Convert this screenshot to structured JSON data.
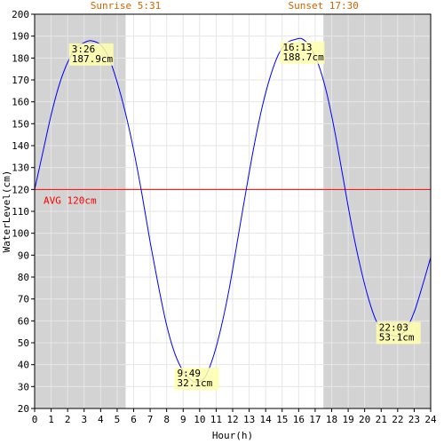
{
  "colors": {
    "night": "#d3d3d3",
    "day": "#ffffff",
    "grid": "#e6e6e6",
    "curve": "#0000ff",
    "avg": "#ff0000",
    "sun_text": "#cc6600",
    "annotation_bg": "#ffffaa",
    "axis": "#000000"
  },
  "sunrise_label": "Sunrise 5:31",
  "sunset_label": "Sunset 17:30",
  "chart_data": {
    "type": "line",
    "xlabel": "Hour(h)",
    "ylabel": "WaterLevel(cm)",
    "xlim": [
      0,
      24
    ],
    "ylim": [
      20,
      200
    ],
    "x_ticks": [
      0,
      1,
      2,
      3,
      4,
      5,
      6,
      7,
      8,
      9,
      10,
      11,
      12,
      13,
      14,
      15,
      16,
      17,
      18,
      19,
      20,
      21,
      22,
      23,
      24
    ],
    "y_ticks": [
      20,
      30,
      40,
      50,
      60,
      70,
      80,
      90,
      100,
      110,
      120,
      130,
      140,
      150,
      160,
      170,
      180,
      190,
      200
    ],
    "grid": true,
    "daylight": {
      "sunrise_hour": 5.517,
      "sunset_hour": 17.5
    },
    "average": {
      "value": 120,
      "label": "AVG 120cm"
    },
    "series": [
      {
        "points": [
          [
            0,
            120
          ],
          [
            0.5,
            137
          ],
          [
            1,
            154
          ],
          [
            1.5,
            168
          ],
          [
            2,
            178
          ],
          [
            2.5,
            184.5
          ],
          [
            3,
            187
          ],
          [
            3.43,
            187.9
          ],
          [
            4,
            186
          ],
          [
            4.5,
            180
          ],
          [
            5,
            169
          ],
          [
            5.5,
            155
          ],
          [
            6,
            138
          ],
          [
            6.5,
            118
          ],
          [
            7,
            96
          ],
          [
            7.5,
            76
          ],
          [
            8,
            58
          ],
          [
            8.5,
            45
          ],
          [
            9,
            37
          ],
          [
            9.5,
            33
          ],
          [
            9.82,
            32.1
          ],
          [
            10.3,
            34
          ],
          [
            10.8,
            43
          ],
          [
            11.3,
            57
          ],
          [
            11.8,
            75
          ],
          [
            12.3,
            97
          ],
          [
            12.8,
            119
          ],
          [
            13.3,
            140
          ],
          [
            13.8,
            158
          ],
          [
            14.3,
            172
          ],
          [
            14.8,
            182
          ],
          [
            15.3,
            187
          ],
          [
            15.8,
            188.5
          ],
          [
            16.22,
            188.7
          ],
          [
            16.7,
            185
          ],
          [
            17.2,
            177
          ],
          [
            17.7,
            164
          ],
          [
            18.2,
            146
          ],
          [
            18.7,
            125
          ],
          [
            19.2,
            104
          ],
          [
            19.7,
            86
          ],
          [
            20.2,
            71
          ],
          [
            20.7,
            60
          ],
          [
            21.2,
            55
          ],
          [
            21.6,
            53.5
          ],
          [
            22.05,
            53.1
          ],
          [
            22.5,
            56
          ],
          [
            23,
            64
          ],
          [
            23.5,
            76
          ],
          [
            24,
            89
          ]
        ]
      }
    ],
    "annotations": [
      {
        "x": 3.43,
        "y": 187.9,
        "time": "3:26",
        "level": "187.9cm"
      },
      {
        "x": 9.82,
        "y": 32.1,
        "time": "9:49",
        "level": "32.1cm"
      },
      {
        "x": 16.22,
        "y": 188.7,
        "time": "16:13",
        "level": "188.7cm"
      },
      {
        "x": 22.05,
        "y": 53.1,
        "time": "22:03",
        "level": "53.1cm"
      }
    ]
  }
}
